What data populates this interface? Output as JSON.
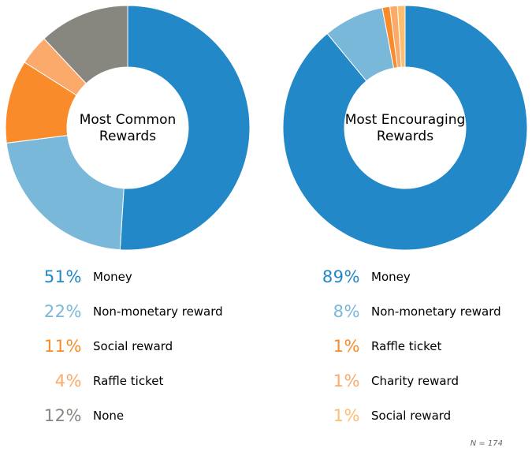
{
  "chart_data": [
    {
      "type": "pie",
      "title": "Most Common Rewards",
      "center_text": [
        "Most Common",
        "Rewards"
      ],
      "series": [
        {
          "name": "Money",
          "value": 51,
          "display": "51%",
          "color": "#2388c8"
        },
        {
          "name": "Non-monetary reward",
          "value": 22,
          "display": "22%",
          "color": "#7ab8da"
        },
        {
          "name": "Social reward",
          "value": 11,
          "display": "11%",
          "color": "#f98b2b"
        },
        {
          "name": "Raffle ticket",
          "value": 4,
          "display": "4%",
          "color": "#fbaa6b"
        },
        {
          "name": "None",
          "value": 12,
          "display": "12%",
          "color": "#88877f"
        }
      ]
    },
    {
      "type": "pie",
      "title": "Most Encouraging Rewards",
      "center_text": [
        "Most Encouraging",
        "Rewards"
      ],
      "series": [
        {
          "name": "Money",
          "value": 89,
          "display": "89%",
          "color": "#2388c8"
        },
        {
          "name": "Non-monetary reward",
          "value": 8,
          "display": "8%",
          "color": "#7ab8da"
        },
        {
          "name": "Raffle ticket",
          "value": 1,
          "display": "1%",
          "color": "#f98b2b"
        },
        {
          "name": "Charity reward",
          "value": 1,
          "display": "1%",
          "color": "#fbaa6b"
        },
        {
          "name": "Social reward",
          "value": 1,
          "display": "1%",
          "color": "#fdbf6f"
        }
      ]
    }
  ],
  "footnote": "N = 174"
}
